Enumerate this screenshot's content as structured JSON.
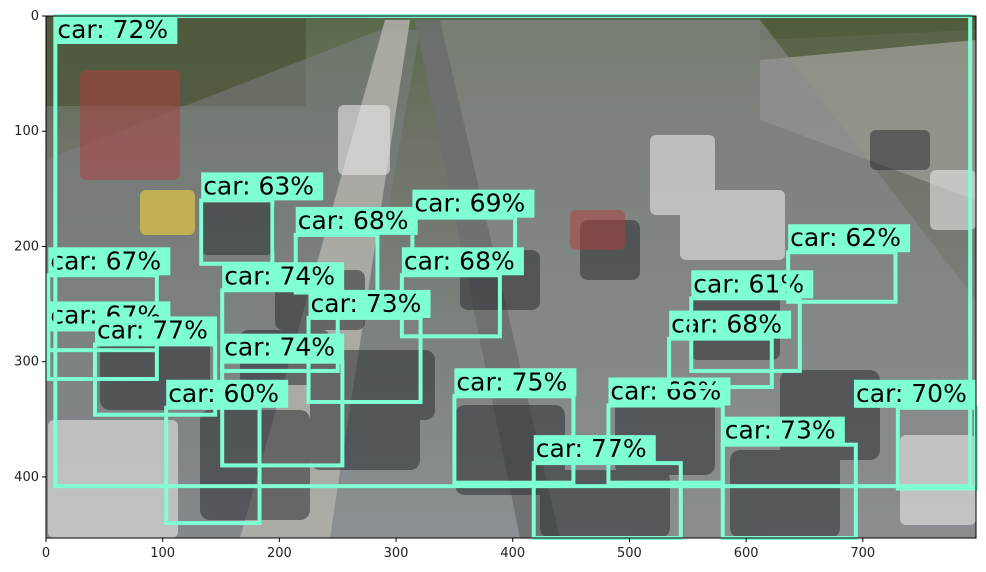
{
  "plot": {
    "x_ticks": [
      "0",
      "100",
      "200",
      "300",
      "400",
      "500",
      "600",
      "700"
    ],
    "y_ticks": [
      "0",
      "100",
      "200",
      "300",
      "400"
    ],
    "x_range": [
      0,
      797
    ],
    "y_range": [
      0,
      453
    ]
  },
  "colors": {
    "box": "#7fffd4",
    "label_bg": "#7fffd4",
    "road": "#8a8f93",
    "trees": "#3f4a30"
  },
  "scene": "highway traffic jam",
  "detections": [
    {
      "label": "car: 67%",
      "x0": 2,
      "y0": 225,
      "x1": 95,
      "y1": 290
    },
    {
      "label": "car: 67%",
      "x0": 2,
      "y0": 272,
      "x1": 95,
      "y1": 315
    },
    {
      "label": "car: 63%",
      "x0": 133,
      "y0": 160,
      "x1": 194,
      "y1": 215
    },
    {
      "label": "car: 68%",
      "x0": 214,
      "y0": 190,
      "x1": 284,
      "y1": 240
    },
    {
      "label": "car: 69%",
      "x0": 314,
      "y0": 175,
      "x1": 402,
      "y1": 218
    },
    {
      "label": "car: 74%",
      "x0": 151,
      "y0": 238,
      "x1": 250,
      "y1": 308
    },
    {
      "label": "car: 68%",
      "x0": 305,
      "y0": 225,
      "x1": 389,
      "y1": 278
    },
    {
      "label": "car: 73%",
      "x0": 225,
      "y0": 262,
      "x1": 321,
      "y1": 335
    },
    {
      "label": "car: 77%",
      "x0": 42,
      "y0": 285,
      "x1": 145,
      "y1": 346
    },
    {
      "label": "car: 74%",
      "x0": 151,
      "y0": 300,
      "x1": 254,
      "y1": 390
    },
    {
      "label": "car: 60%",
      "x0": 103,
      "y0": 340,
      "x1": 183,
      "y1": 440
    },
    {
      "label": "car: 72%",
      "x0": 8,
      "y0": 0,
      "x1": 792,
      "y1": 408
    },
    {
      "label": "car: 75%",
      "x0": 350,
      "y0": 330,
      "x1": 452,
      "y1": 405
    },
    {
      "label": "car: 77%",
      "x0": 418,
      "y0": 388,
      "x1": 544,
      "y1": 453
    },
    {
      "label": "car: 68%",
      "x0": 482,
      "y0": 338,
      "x1": 580,
      "y1": 405
    },
    {
      "label": "car: 68%",
      "x0": 534,
      "y0": 280,
      "x1": 622,
      "y1": 322
    },
    {
      "label": "car: 61%",
      "x0": 553,
      "y0": 245,
      "x1": 646,
      "y1": 308
    },
    {
      "label": "car: 62%",
      "x0": 636,
      "y0": 205,
      "x1": 728,
      "y1": 248
    },
    {
      "label": "car: 73%",
      "x0": 580,
      "y0": 372,
      "x1": 694,
      "y1": 453
    },
    {
      "label": "car: 70%",
      "x0": 730,
      "y0": 340,
      "x1": 797,
      "y1": 410
    }
  ]
}
